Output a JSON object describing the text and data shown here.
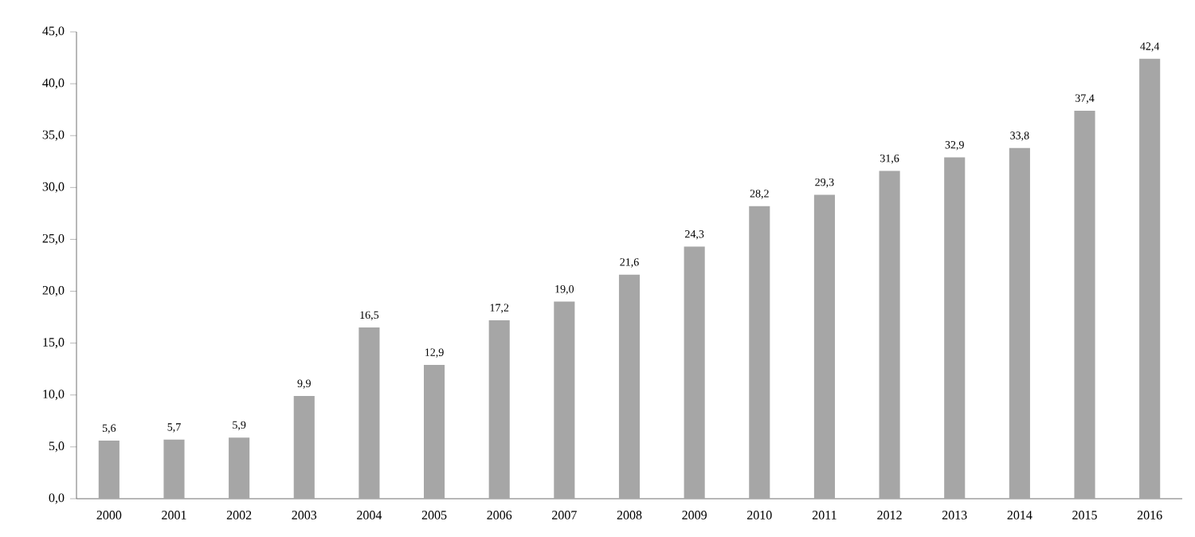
{
  "chart_data": {
    "type": "bar",
    "categories": [
      "2000",
      "2001",
      "2002",
      "2003",
      "2004",
      "2005",
      "2006",
      "2007",
      "2008",
      "2009",
      "2010",
      "2011",
      "2012",
      "2013",
      "2014",
      "2015",
      "2016"
    ],
    "values": [
      5.6,
      5.7,
      5.9,
      9.9,
      16.5,
      12.9,
      17.2,
      19.0,
      21.6,
      24.3,
      28.2,
      29.3,
      31.6,
      32.9,
      33.8,
      37.4,
      42.4
    ],
    "value_labels": [
      "5,6",
      "5,7",
      "5,9",
      "9,9",
      "16,5",
      "12,9",
      "17,2",
      "19,0",
      "21,6",
      "24,3",
      "28,2",
      "29,3",
      "31,6",
      "32,9",
      "33,8",
      "37,4",
      "42,4"
    ],
    "color": "#a6a6a6",
    "ylim": [
      0,
      45
    ],
    "yticks": [
      {
        "value": 0,
        "label": "0,0"
      },
      {
        "value": 5,
        "label": "5,0"
      },
      {
        "value": 10,
        "label": "10,0"
      },
      {
        "value": 15,
        "label": "15,0"
      },
      {
        "value": 20,
        "label": "20,0"
      },
      {
        "value": 25,
        "label": "25,0"
      },
      {
        "value": 30,
        "label": "30,0"
      },
      {
        "value": 35,
        "label": "35,0"
      },
      {
        "value": 40,
        "label": "40,0"
      },
      {
        "value": 45,
        "label": "45,0"
      }
    ],
    "grid": false
  }
}
